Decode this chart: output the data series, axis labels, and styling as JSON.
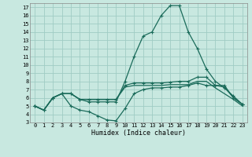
{
  "xlabel": "Humidex (Indice chaleur)",
  "bg_color": "#c8e8e0",
  "grid_color": "#a0ccc4",
  "line_color": "#1a6b5a",
  "xlim": [
    -0.5,
    23.5
  ],
  "ylim": [
    3,
    17.5
  ],
  "xticks": [
    0,
    1,
    2,
    3,
    4,
    5,
    6,
    7,
    8,
    9,
    10,
    11,
    12,
    13,
    14,
    15,
    16,
    17,
    18,
    19,
    20,
    21,
    22,
    23
  ],
  "yticks": [
    3,
    4,
    5,
    6,
    7,
    8,
    9,
    10,
    11,
    12,
    13,
    14,
    15,
    16,
    17
  ],
  "series": [
    {
      "x": [
        0,
        1,
        2,
        3,
        4,
        5,
        6,
        7,
        8,
        9,
        10,
        11,
        12,
        13,
        14,
        15,
        16,
        17,
        18,
        19,
        20,
        21,
        22,
        23
      ],
      "y": [
        5.0,
        4.5,
        6.0,
        6.5,
        6.5,
        5.8,
        5.5,
        5.5,
        5.5,
        5.5,
        8.0,
        11.0,
        13.5,
        14.0,
        16.0,
        17.2,
        17.2,
        14.0,
        12.0,
        9.5,
        8.0,
        7.2,
        6.2,
        5.2
      ],
      "marker": true
    },
    {
      "x": [
        0,
        1,
        2,
        3,
        4,
        5,
        6,
        7,
        8,
        9,
        10,
        11,
        12,
        13,
        14,
        15,
        16,
        17,
        18,
        19,
        20,
        21,
        22,
        23
      ],
      "y": [
        5.0,
        4.5,
        6.0,
        6.5,
        6.5,
        5.8,
        5.8,
        5.8,
        5.8,
        5.8,
        7.5,
        7.8,
        7.8,
        7.8,
        7.8,
        7.9,
        8.0,
        8.0,
        8.5,
        8.5,
        7.5,
        7.5,
        6.0,
        5.2
      ],
      "marker": true
    },
    {
      "x": [
        0,
        1,
        2,
        3,
        4,
        5,
        6,
        7,
        8,
        9,
        10,
        11,
        12,
        13,
        14,
        15,
        16,
        17,
        18,
        19,
        20,
        21,
        22,
        23
      ],
      "y": [
        5.0,
        4.5,
        6.0,
        6.5,
        6.5,
        5.8,
        5.8,
        5.8,
        5.8,
        5.8,
        7.3,
        7.5,
        7.5,
        7.5,
        7.5,
        7.6,
        7.6,
        7.6,
        8.0,
        8.0,
        7.2,
        6.5,
        5.8,
        5.0
      ],
      "marker": false
    },
    {
      "x": [
        0,
        1,
        2,
        3,
        4,
        5,
        6,
        7,
        8,
        9,
        10,
        11,
        12,
        13,
        14,
        15,
        16,
        17,
        18,
        19,
        20,
        21,
        22,
        23
      ],
      "y": [
        5.0,
        4.5,
        6.0,
        6.5,
        5.0,
        4.5,
        4.3,
        3.8,
        3.3,
        3.2,
        4.7,
        6.5,
        7.0,
        7.2,
        7.2,
        7.3,
        7.3,
        7.5,
        7.8,
        7.5,
        7.5,
        7.3,
        6.0,
        5.2
      ],
      "marker": true
    }
  ]
}
